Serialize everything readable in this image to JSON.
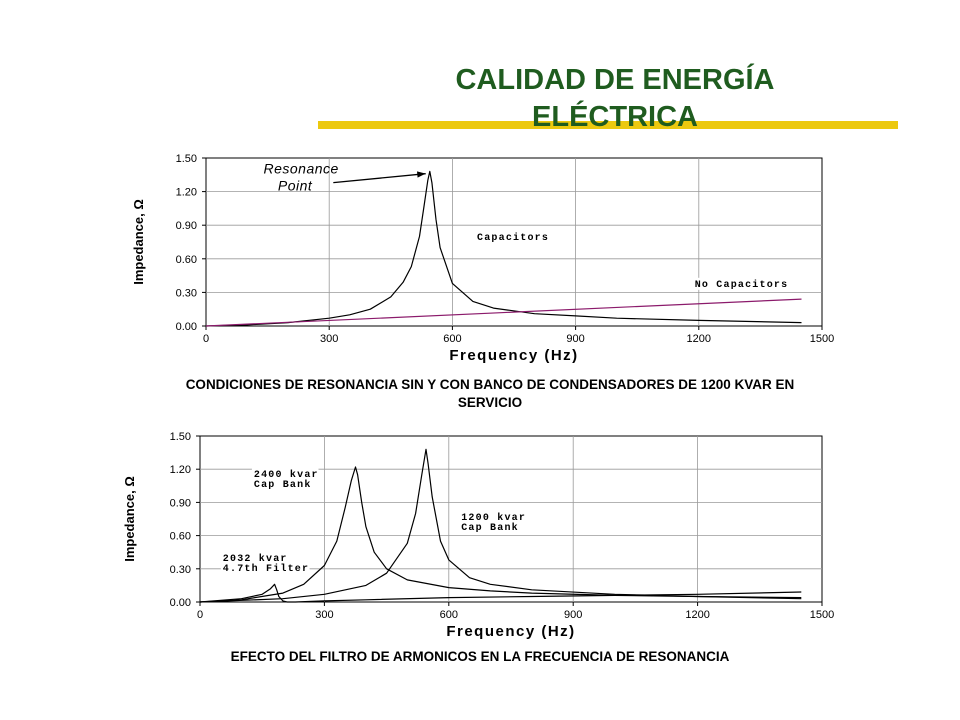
{
  "title": {
    "line1": "CALIDAD DE ENERGÍA",
    "line2": "ELÉCTRICA",
    "color": "#1f5c1f",
    "bar_color": "#ecc90f"
  },
  "captions": {
    "chart1_line1": "CONDICIONES DE RESONANCIA SIN Y CON BANCO DE CONDENSADORES DE 1200 KVAR EN",
    "chart1_line2": "SERVICIO",
    "chart2": "EFECTO DEL FILTRO DE ARMONICOS EN LA FRECUENCIA DE RESONANCIA"
  },
  "chart_data": [
    {
      "type": "line",
      "xlabel": "Frequency (Hz)",
      "ylabel": "Impedance, Ω",
      "xlim": [
        0,
        1500
      ],
      "ylim": [
        0,
        1.5
      ],
      "xticks": [
        "0",
        "300",
        "600",
        "900",
        "1200",
        "1500"
      ],
      "yticks": [
        "0.00",
        "0.30",
        "0.60",
        "0.90",
        "1.20",
        "1.50"
      ],
      "grid": true,
      "annotations": [
        {
          "text": "Resonance",
          "x": 140,
          "y": 1.36
        },
        {
          "text": "Point",
          "x": 175,
          "y": 1.21
        },
        {
          "text": "Capacitors",
          "x": 660,
          "y": 0.77
        },
        {
          "text": "No Capacitors",
          "x": 1190,
          "y": 0.35
        }
      ],
      "arrow": {
        "from": [
          310,
          1.28
        ],
        "to": [
          535,
          1.36
        ]
      },
      "series": [
        {
          "color": "#000000",
          "x": [
            0,
            100,
            200,
            300,
            350,
            400,
            450,
            480,
            500,
            520,
            530,
            540,
            545,
            550,
            560,
            570,
            600,
            650,
            700,
            800,
            900,
            1000,
            1200,
            1450
          ],
          "y": [
            0.0,
            0.01,
            0.03,
            0.07,
            0.1,
            0.15,
            0.26,
            0.39,
            0.53,
            0.8,
            1.05,
            1.3,
            1.38,
            1.28,
            0.95,
            0.7,
            0.38,
            0.22,
            0.16,
            0.11,
            0.09,
            0.07,
            0.05,
            0.03
          ]
        },
        {
          "color": "#8b1a6b",
          "x": [
            0,
            1450
          ],
          "y": [
            0.0,
            0.24
          ]
        }
      ]
    },
    {
      "type": "line",
      "xlabel": "Frequency (Hz)",
      "ylabel": "Impedance, Ω",
      "xlim": [
        0,
        1500
      ],
      "ylim": [
        0,
        1.5
      ],
      "xticks": [
        "0",
        "300",
        "600",
        "900",
        "1200",
        "1500"
      ],
      "yticks": [
        "0.00",
        "0.30",
        "0.60",
        "0.90",
        "1.20",
        "1.50"
      ],
      "grid": true,
      "annotations": [
        {
          "text": "2400 kvar",
          "x": 130,
          "y": 1.13
        },
        {
          "text": "Cap Bank",
          "x": 130,
          "y": 1.04
        },
        {
          "text": "1200 kvar",
          "x": 630,
          "y": 0.74
        },
        {
          "text": "Cap Bank",
          "x": 630,
          "y": 0.65
        },
        {
          "text": "2032 kvar",
          "x": 55,
          "y": 0.37
        },
        {
          "text": "4.7th Filter",
          "x": 55,
          "y": 0.28
        }
      ],
      "series": [
        {
          "name": "2400 kvar Cap Bank",
          "color": "#000000",
          "x": [
            0,
            100,
            200,
            250,
            300,
            330,
            350,
            365,
            375,
            380,
            390,
            400,
            420,
            450,
            500,
            600,
            700,
            800,
            1000,
            1200,
            1450
          ],
          "y": [
            0.0,
            0.02,
            0.08,
            0.16,
            0.33,
            0.55,
            0.85,
            1.1,
            1.22,
            1.15,
            0.9,
            0.68,
            0.45,
            0.3,
            0.2,
            0.13,
            0.1,
            0.08,
            0.06,
            0.05,
            0.04
          ]
        },
        {
          "name": "1200 kvar Cap Bank",
          "color": "#000000",
          "x": [
            0,
            200,
            300,
            400,
            450,
            500,
            520,
            535,
            545,
            550,
            560,
            580,
            600,
            650,
            700,
            800,
            1000,
            1200,
            1450
          ],
          "y": [
            0.0,
            0.03,
            0.07,
            0.15,
            0.26,
            0.53,
            0.8,
            1.15,
            1.38,
            1.25,
            0.95,
            0.55,
            0.38,
            0.22,
            0.16,
            0.11,
            0.07,
            0.05,
            0.03
          ]
        },
        {
          "name": "2032 kvar 4.7th Filter",
          "color": "#000000",
          "x": [
            0,
            100,
            150,
            170,
            180,
            185,
            190,
            200,
            210,
            230,
            300,
            400,
            600,
            800,
            1000,
            1200,
            1450
          ],
          "y": [
            0.0,
            0.03,
            0.07,
            0.12,
            0.16,
            0.11,
            0.05,
            0.01,
            0.0,
            0.0,
            0.01,
            0.02,
            0.04,
            0.05,
            0.06,
            0.07,
            0.09
          ]
        }
      ]
    }
  ]
}
